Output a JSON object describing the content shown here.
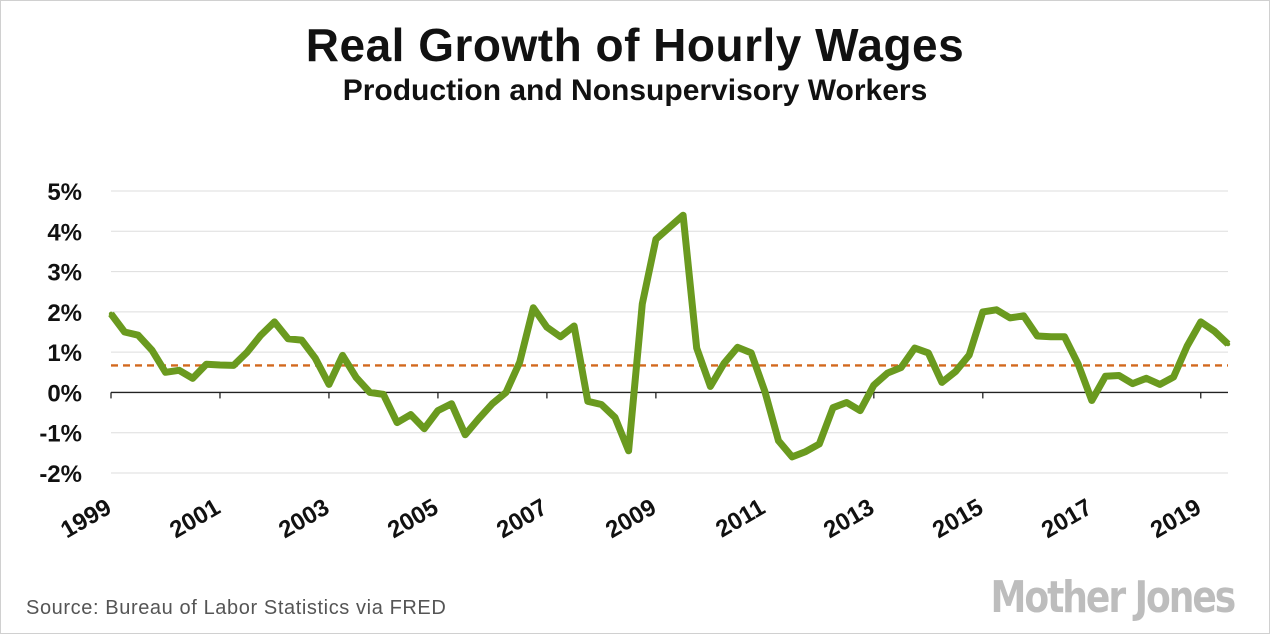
{
  "chart_data": {
    "type": "line",
    "title": "Real Growth of Hourly Wages",
    "subtitle": "Production and Nonsupervisory Workers",
    "xlabel": "",
    "ylabel": "",
    "ylim": [
      -2,
      5
    ],
    "xlim": [
      1999,
      2019.5
    ],
    "yticks": [
      "5%",
      "4%",
      "3%",
      "2%",
      "1%",
      "0%",
      "-1%",
      "-2%"
    ],
    "ytick_values": [
      5,
      4,
      3,
      2,
      1,
      0,
      -1,
      -2
    ],
    "xticks": [
      "1999",
      "2001",
      "2003",
      "2005",
      "2007",
      "2009",
      "2011",
      "2013",
      "2015",
      "2017",
      "2019"
    ],
    "xtick_values": [
      1999,
      2001,
      2003,
      2005,
      2007,
      2009,
      2011,
      2013,
      2015,
      2017,
      2019
    ],
    "grid": true,
    "series": [
      {
        "color": "#6a9a1f",
        "x": [
          1999,
          1999.25,
          1999.5,
          1999.75,
          2000,
          2000.25,
          2000.5,
          2000.75,
          2001,
          2001.25,
          2001.5,
          2001.75,
          2002,
          2002.25,
          2002.5,
          2002.75,
          2003,
          2003.25,
          2003.5,
          2003.75,
          2004,
          2004.25,
          2004.5,
          2004.75,
          2005,
          2005.25,
          2005.5,
          2005.75,
          2006,
          2006.25,
          2006.5,
          2006.75,
          2007,
          2007.25,
          2007.5,
          2007.75,
          2008,
          2008.25,
          2008.5,
          2008.75,
          2009,
          2009.25,
          2009.5,
          2009.75,
          2010,
          2010.25,
          2010.5,
          2010.75,
          2011,
          2011.25,
          2011.5,
          2011.75,
          2012,
          2012.25,
          2012.5,
          2012.75,
          2013,
          2013.25,
          2013.5,
          2013.75,
          2014,
          2014.25,
          2014.5,
          2014.75,
          2015,
          2015.25,
          2015.5,
          2015.75,
          2016,
          2016.25,
          2016.5,
          2016.75,
          2017,
          2017.25,
          2017.5,
          2017.75,
          2018,
          2018.25,
          2018.5,
          2018.75,
          2019,
          2019.25,
          2019.5
        ],
        "values": [
          1.95,
          1.5,
          1.42,
          1.05,
          0.5,
          0.55,
          0.35,
          0.7,
          0.68,
          0.67,
          1.0,
          1.42,
          1.75,
          1.33,
          1.3,
          0.85,
          0.2,
          0.92,
          0.37,
          0.0,
          -0.05,
          -0.75,
          -0.55,
          -0.9,
          -0.45,
          -0.28,
          -1.05,
          -0.65,
          -0.28,
          0.0,
          0.75,
          2.1,
          1.62,
          1.38,
          1.65,
          -0.22,
          -0.3,
          -0.62,
          -1.45,
          2.2,
          3.8,
          4.1,
          4.4,
          1.1,
          0.15,
          0.72,
          1.12,
          0.98,
          0.02,
          -1.2,
          -1.6,
          -1.47,
          -1.28,
          -0.38,
          -0.25,
          -0.45,
          0.18,
          0.48,
          0.62,
          1.1,
          0.98,
          0.25,
          0.52,
          0.93,
          2.0,
          2.05,
          1.85,
          1.9,
          1.4,
          1.38,
          1.38,
          0.7,
          -0.2,
          0.4,
          0.42,
          0.22,
          0.35,
          0.2,
          0.38,
          1.15,
          1.75,
          1.52,
          1.2
        ]
      }
    ],
    "reference_lines": [
      {
        "y": 0.67,
        "color": "#d2691e",
        "style": "dashed"
      }
    ]
  },
  "footer": {
    "source": "Source: Bureau of Labor Statistics via FRED",
    "logo": "Mother Jones"
  }
}
